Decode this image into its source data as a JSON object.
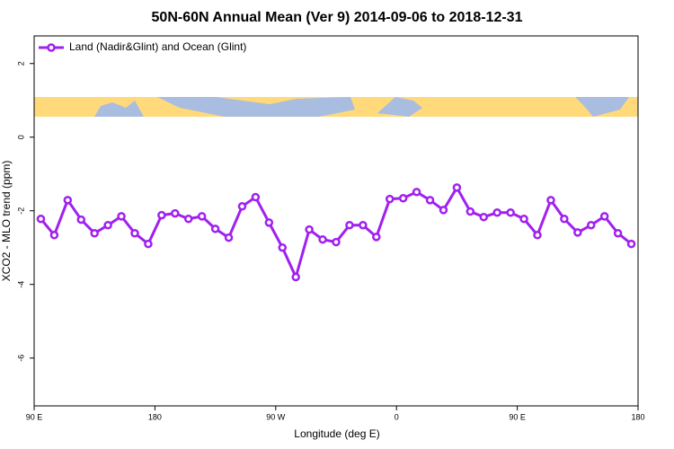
{
  "chart_data": {
    "type": "line",
    "title": "50N-60N Annual Mean (Ver 9)   2014-09-06 to 2018-12-31",
    "x_label": "Longitude (deg E)",
    "y_label": "XCO2 - MLO trend (ppm)",
    "xlim": [
      90,
      540
    ],
    "ylim": [
      -7.3,
      2.75
    ],
    "xticks": [
      {
        "value": 90,
        "label": "90 E"
      },
      180,
      {
        "value": 270,
        "label": "90 W"
      },
      {
        "value": 360,
        "label": "0"
      },
      {
        "value": 450,
        "label": "90 E"
      },
      {
        "value": 540,
        "label": "180"
      }
    ],
    "yticks": [
      2,
      0,
      -2,
      -4,
      -6
    ],
    "legend": "top-left",
    "series": [
      {
        "name": "Land (Nadir&Glint) and Ocean (Glint)",
        "color": "#a020f0",
        "x": [
          95,
          105,
          115,
          125,
          135,
          145,
          155,
          165,
          175,
          185,
          195,
          205,
          215,
          225,
          235,
          245,
          255,
          265,
          275,
          285,
          295,
          305,
          315,
          325,
          335,
          345,
          355,
          365,
          375,
          385,
          395,
          405,
          415,
          425,
          435,
          445,
          455,
          465,
          475,
          485,
          495,
          505,
          515,
          525,
          535
        ],
        "values": [
          -2.22,
          -2.66,
          -1.71,
          -2.24,
          -2.61,
          -2.39,
          -2.15,
          -2.61,
          -2.9,
          -2.12,
          -2.07,
          -2.22,
          -2.15,
          -2.49,
          -2.73,
          -1.88,
          -1.63,
          -2.32,
          -3.0,
          -3.8,
          -2.51,
          -2.78,
          -2.85,
          -2.39,
          -2.39,
          -2.71,
          -1.68,
          -1.66,
          -1.49,
          -1.71,
          -1.98,
          -1.37,
          -2.02,
          -2.17,
          -2.05,
          -2.05,
          -2.22,
          -2.66,
          -1.71,
          -2.22,
          -2.59,
          -2.39,
          -2.15,
          -2.61,
          -2.9
        ]
      }
    ]
  }
}
